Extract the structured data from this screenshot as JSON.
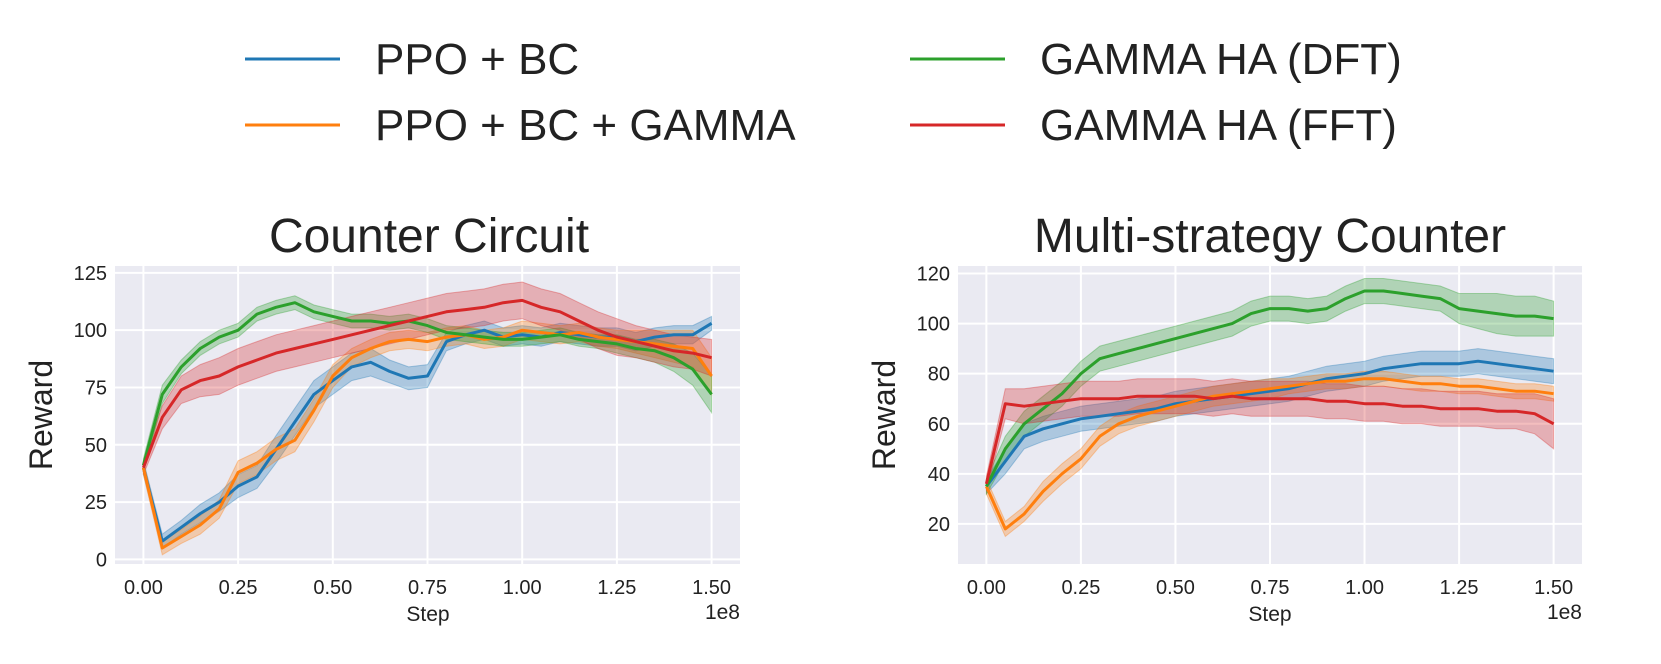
{
  "legend": [
    {
      "label": "PPO + BC",
      "color": "#1f77b4"
    },
    {
      "label": "PPO + BC + GAMMA",
      "color": "#ff7f0e"
    },
    {
      "label": "GAMMA HA (DFT)",
      "color": "#2ca02c"
    },
    {
      "label": "GAMMA HA (FFT)",
      "color": "#d62728"
    }
  ],
  "chart_data": [
    {
      "type": "line",
      "title": "Counter Circuit",
      "xlabel": "Step",
      "ylabel": "Reward",
      "x_scale_label": "1e8",
      "xlim": [
        -0.075,
        1.575
      ],
      "ylim": [
        -2,
        128
      ],
      "xticks": [
        0.0,
        0.25,
        0.5,
        0.75,
        1.0,
        1.25,
        1.5
      ],
      "xtick_labels": [
        "0.00",
        "0.25",
        "0.50",
        "0.75",
        "1.00",
        "1.25",
        "1.50"
      ],
      "yticks": [
        0,
        25,
        50,
        75,
        100,
        125
      ],
      "ytick_labels": [
        "0",
        "25",
        "50",
        "75",
        "100",
        "125"
      ],
      "x": [
        0.0,
        0.05,
        0.1,
        0.15,
        0.2,
        0.25,
        0.3,
        0.35,
        0.4,
        0.45,
        0.5,
        0.55,
        0.6,
        0.65,
        0.7,
        0.75,
        0.8,
        0.85,
        0.9,
        0.95,
        1.0,
        1.05,
        1.1,
        1.15,
        1.2,
        1.25,
        1.3,
        1.35,
        1.4,
        1.45,
        1.5
      ],
      "series": [
        {
          "name": "PPO + BC",
          "color": "#1f77b4",
          "values": [
            40,
            8,
            14,
            20,
            25,
            32,
            36,
            48,
            60,
            72,
            78,
            84,
            86,
            82,
            79,
            80,
            95,
            98,
            100,
            97,
            98,
            97,
            99,
            98,
            97,
            97,
            95,
            97,
            98,
            98,
            103
          ],
          "band": [
            3,
            3,
            3,
            4,
            4,
            5,
            5,
            6,
            6,
            6,
            6,
            6,
            6,
            5,
            5,
            5,
            4,
            4,
            4,
            4,
            4,
            4,
            4,
            4,
            4,
            4,
            4,
            4,
            4,
            4,
            3
          ]
        },
        {
          "name": "PPO + BC + GAMMA",
          "color": "#ff7f0e",
          "values": [
            40,
            5,
            10,
            15,
            22,
            38,
            42,
            48,
            52,
            65,
            80,
            88,
            92,
            95,
            96,
            95,
            97,
            98,
            96,
            97,
            100,
            99,
            98,
            99,
            97,
            96,
            95,
            94,
            93,
            92,
            80
          ],
          "band": [
            3,
            3,
            3,
            4,
            4,
            5,
            5,
            5,
            5,
            5,
            5,
            4,
            4,
            4,
            4,
            4,
            4,
            4,
            4,
            4,
            4,
            4,
            4,
            4,
            4,
            4,
            5,
            6,
            7,
            8,
            8
          ]
        },
        {
          "name": "GAMMA HA (DFT)",
          "color": "#2ca02c",
          "values": [
            41,
            72,
            84,
            92,
            97,
            100,
            107,
            110,
            112,
            108,
            106,
            104,
            104,
            103,
            104,
            102,
            99,
            98,
            97,
            96,
            96,
            97,
            98,
            96,
            95,
            94,
            92,
            91,
            88,
            83,
            72
          ],
          "band": [
            3,
            4,
            3,
            3,
            3,
            3,
            3,
            3,
            3,
            3,
            3,
            3,
            3,
            3,
            3,
            3,
            3,
            3,
            3,
            3,
            3,
            3,
            3,
            3,
            3,
            4,
            4,
            5,
            6,
            7,
            8
          ]
        },
        {
          "name": "GAMMA HA (FFT)",
          "color": "#d62728",
          "values": [
            40,
            62,
            74,
            78,
            80,
            84,
            87,
            90,
            92,
            94,
            96,
            98,
            100,
            102,
            104,
            106,
            108,
            109,
            110,
            112,
            113,
            110,
            108,
            104,
            100,
            97,
            95,
            93,
            91,
            90,
            88
          ],
          "band": [
            3,
            5,
            6,
            7,
            8,
            8,
            8,
            8,
            8,
            8,
            8,
            8,
            8,
            8,
            8,
            8,
            8,
            8,
            8,
            8,
            8,
            8,
            8,
            8,
            8,
            8,
            7,
            7,
            7,
            7,
            8
          ]
        }
      ]
    },
    {
      "type": "line",
      "title": "Multi-strategy Counter",
      "xlabel": "Step",
      "ylabel": "Reward",
      "x_scale_label": "1e8",
      "xlim": [
        -0.075,
        1.575
      ],
      "ylim": [
        4,
        123
      ],
      "xticks": [
        0.0,
        0.25,
        0.5,
        0.75,
        1.0,
        1.25,
        1.5
      ],
      "xtick_labels": [
        "0.00",
        "0.25",
        "0.50",
        "0.75",
        "1.00",
        "1.25",
        "1.50"
      ],
      "yticks": [
        20,
        40,
        60,
        80,
        100,
        120
      ],
      "ytick_labels": [
        "20",
        "40",
        "60",
        "80",
        "100",
        "120"
      ],
      "x": [
        0.0,
        0.05,
        0.1,
        0.15,
        0.2,
        0.25,
        0.3,
        0.35,
        0.4,
        0.45,
        0.5,
        0.55,
        0.6,
        0.65,
        0.7,
        0.75,
        0.8,
        0.85,
        0.9,
        0.95,
        1.0,
        1.05,
        1.1,
        1.15,
        1.2,
        1.25,
        1.3,
        1.35,
        1.4,
        1.45,
        1.5
      ],
      "series": [
        {
          "name": "PPO + BC",
          "color": "#1f77b4",
          "values": [
            35,
            45,
            55,
            58,
            60,
            62,
            63,
            64,
            65,
            66,
            68,
            69,
            70,
            71,
            72,
            73,
            74,
            76,
            78,
            79,
            80,
            82,
            83,
            84,
            84,
            84,
            85,
            84,
            83,
            82,
            81
          ],
          "band": [
            3,
            5,
            5,
            5,
            5,
            5,
            5,
            5,
            5,
            5,
            5,
            5,
            5,
            5,
            5,
            5,
            5,
            5,
            5,
            5,
            5,
            5,
            5,
            5,
            5,
            5,
            5,
            5,
            5,
            5,
            5
          ]
        },
        {
          "name": "PPO + BC + GAMMA",
          "color": "#ff7f0e",
          "values": [
            35,
            18,
            24,
            33,
            40,
            46,
            55,
            60,
            63,
            65,
            67,
            69,
            71,
            72,
            73,
            74,
            75,
            76,
            77,
            77,
            78,
            78,
            77,
            76,
            76,
            75,
            75,
            74,
            73,
            73,
            72
          ],
          "band": [
            3,
            3,
            3,
            4,
            4,
            4,
            4,
            4,
            4,
            4,
            4,
            4,
            4,
            4,
            4,
            4,
            3,
            3,
            3,
            3,
            3,
            3,
            3,
            3,
            3,
            3,
            3,
            3,
            3,
            3,
            3
          ]
        },
        {
          "name": "GAMMA HA (DFT)",
          "color": "#2ca02c",
          "values": [
            35,
            50,
            60,
            66,
            72,
            80,
            86,
            88,
            90,
            92,
            94,
            96,
            98,
            100,
            104,
            106,
            106,
            105,
            106,
            110,
            113,
            113,
            112,
            111,
            110,
            106,
            105,
            104,
            103,
            103,
            102
          ],
          "band": [
            3,
            5,
            5,
            5,
            5,
            5,
            5,
            5,
            5,
            5,
            5,
            5,
            5,
            5,
            5,
            5,
            5,
            5,
            5,
            5,
            5,
            5,
            5,
            5,
            5,
            6,
            7,
            8,
            8,
            8,
            7
          ]
        },
        {
          "name": "GAMMA HA (FFT)",
          "color": "#d62728",
          "values": [
            36,
            68,
            67,
            68,
            69,
            70,
            70,
            70,
            71,
            71,
            71,
            71,
            70,
            71,
            70,
            70,
            70,
            70,
            69,
            69,
            68,
            68,
            67,
            67,
            66,
            66,
            66,
            65,
            65,
            64,
            60
          ],
          "band": [
            3,
            6,
            7,
            7,
            7,
            7,
            7,
            7,
            7,
            7,
            7,
            7,
            7,
            7,
            7,
            7,
            7,
            7,
            7,
            7,
            7,
            7,
            7,
            7,
            7,
            7,
            7,
            7,
            7,
            8,
            10
          ]
        }
      ]
    }
  ]
}
